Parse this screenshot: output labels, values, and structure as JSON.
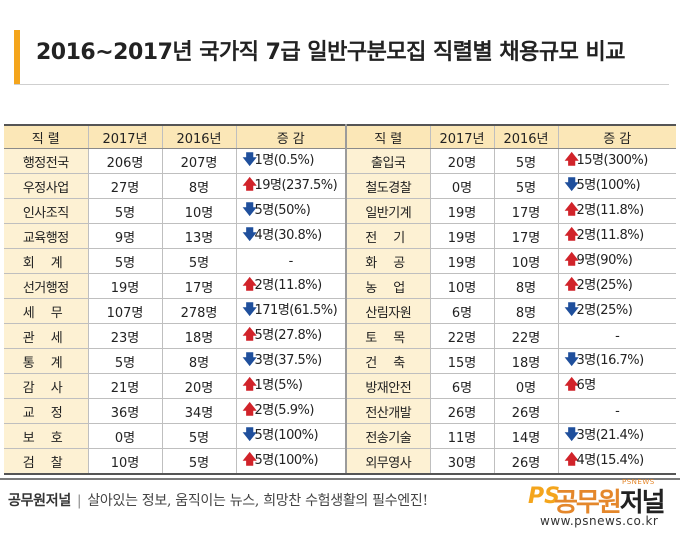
{
  "title": "2016~2017년 국가직 7급 일반구분모집 직렬별 채용규모 비교",
  "headers": {
    "left": [
      "직 렬",
      "2017년",
      "2016년",
      "증 감"
    ],
    "right": [
      "직 렬",
      "2017년",
      "2016년",
      "증 감"
    ]
  },
  "rows": [
    {
      "l": {
        "name": "행정전국",
        "y2017": "206명",
        "y2016": "207명",
        "dir": "down",
        "change": "1명(0.5%)"
      },
      "r": {
        "name": "출입국",
        "y2017": "20명",
        "y2016": "5명",
        "dir": "up",
        "change": "15명(300%)"
      }
    },
    {
      "l": {
        "name": "우정사업",
        "y2017": "27명",
        "y2016": "8명",
        "dir": "up",
        "change": "19명(237.5%)"
      },
      "r": {
        "name": "철도경찰",
        "y2017": "0명",
        "y2016": "5명",
        "dir": "down",
        "change": "5명(100%)"
      }
    },
    {
      "l": {
        "name": "인사조직",
        "y2017": "5명",
        "y2016": "10명",
        "dir": "down",
        "change": "5명(50%)"
      },
      "r": {
        "name": "일반기계",
        "y2017": "19명",
        "y2016": "17명",
        "dir": "up",
        "change": "2명(11.8%)"
      }
    },
    {
      "l": {
        "name": "교육행정",
        "y2017": "9명",
        "y2016": "13명",
        "dir": "down",
        "change": "4명(30.8%)"
      },
      "r": {
        "name": "전 기",
        "y2017": "19명",
        "y2016": "17명",
        "dir": "up",
        "change": "2명(11.8%)"
      }
    },
    {
      "l": {
        "name": "회 계",
        "y2017": "5명",
        "y2016": "5명",
        "dir": "none",
        "change": "-"
      },
      "r": {
        "name": "화 공",
        "y2017": "19명",
        "y2016": "10명",
        "dir": "up",
        "change": "9명(90%)"
      }
    },
    {
      "l": {
        "name": "선거행정",
        "y2017": "19명",
        "y2016": "17명",
        "dir": "up",
        "change": "2명(11.8%)"
      },
      "r": {
        "name": "농 업",
        "y2017": "10명",
        "y2016": "8명",
        "dir": "up",
        "change": "2명(25%)"
      }
    },
    {
      "l": {
        "name": "세 무",
        "y2017": "107명",
        "y2016": "278명",
        "dir": "down",
        "change": "171명(61.5%)"
      },
      "r": {
        "name": "산림자원",
        "y2017": "6명",
        "y2016": "8명",
        "dir": "down",
        "change": "2명(25%)"
      }
    },
    {
      "l": {
        "name": "관 세",
        "y2017": "23명",
        "y2016": "18명",
        "dir": "up",
        "change": "5명(27.8%)"
      },
      "r": {
        "name": "토 목",
        "y2017": "22명",
        "y2016": "22명",
        "dir": "none",
        "change": "-"
      }
    },
    {
      "l": {
        "name": "통 계",
        "y2017": "5명",
        "y2016": "8명",
        "dir": "down",
        "change": "3명(37.5%)"
      },
      "r": {
        "name": "건 축",
        "y2017": "15명",
        "y2016": "18명",
        "dir": "down",
        "change": "3명(16.7%)"
      }
    },
    {
      "l": {
        "name": "감 사",
        "y2017": "21명",
        "y2016": "20명",
        "dir": "up",
        "change": "1명(5%)"
      },
      "r": {
        "name": "방재안전",
        "y2017": "6명",
        "y2016": "0명",
        "dir": "up",
        "change": "6명"
      }
    },
    {
      "l": {
        "name": "교 정",
        "y2017": "36명",
        "y2016": "34명",
        "dir": "up",
        "change": "2명(5.9%)"
      },
      "r": {
        "name": "전산개발",
        "y2017": "26명",
        "y2016": "26명",
        "dir": "none",
        "change": "-"
      }
    },
    {
      "l": {
        "name": "보 호",
        "y2017": "0명",
        "y2016": "5명",
        "dir": "down",
        "change": "5명(100%)"
      },
      "r": {
        "name": "전송기술",
        "y2017": "11명",
        "y2016": "14명",
        "dir": "down",
        "change": "3명(21.4%)"
      }
    },
    {
      "l": {
        "name": "검 찰",
        "y2017": "10명",
        "y2016": "5명",
        "dir": "up",
        "change": "5명(100%)"
      },
      "r": {
        "name": "외무영사",
        "y2017": "30명",
        "y2016": "26명",
        "dir": "up",
        "change": "4명(15.4%)"
      }
    }
  ],
  "arrows": {
    "up": "🡅",
    "down": "🡇"
  },
  "footer": {
    "brand": "공무원저널",
    "separator": "|",
    "slogan": "살아있는 정보, 움직이는 뉴스, 희망찬 수험생활의 필수엔진!"
  },
  "logo": {
    "ps": "PS",
    "name_a": "공무원",
    "name_b": "저널",
    "tagline": "PSNEWS",
    "url": "www.psnews.co.kr"
  },
  "colors": {
    "accent": "#f4a51c",
    "header_bg": "#fbe7b7",
    "name_bg": "#fdf1d3",
    "up": "#d1232a",
    "down": "#1f4f9c"
  }
}
